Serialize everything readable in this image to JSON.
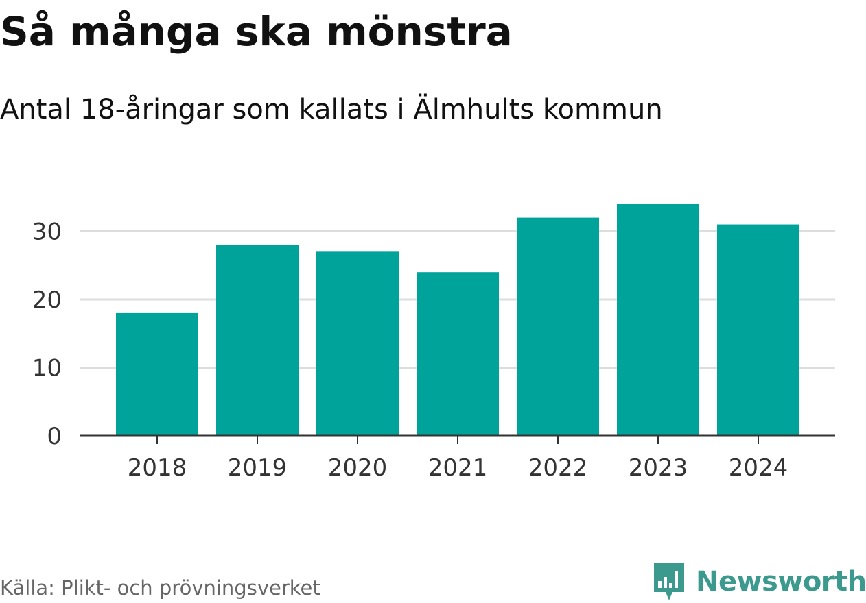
{
  "header": {
    "title": "Så många ska mönstra",
    "subtitle": "Antal 18-åringar som kallats i Älmhults kommun"
  },
  "footer": {
    "source": "Källa: Plikt- och prövningsverket",
    "brand": "Newsworthy",
    "brand_icon": "bar-chart-speech-bubble-icon"
  },
  "colors": {
    "bar": "#00a39a",
    "grid": "#dddddd",
    "axis": "#333333",
    "brand": "#3b9a8d"
  },
  "chart_data": {
    "type": "bar",
    "title": "Så många ska mönstra",
    "subtitle": "Antal 18-åringar som kallats i Älmhults kommun",
    "categories": [
      "2018",
      "2019",
      "2020",
      "2021",
      "2022",
      "2023",
      "2024"
    ],
    "values": [
      18,
      28,
      27,
      24,
      32,
      34,
      31
    ],
    "yticks": [
      0,
      10,
      20,
      30
    ],
    "ylim": [
      0,
      36
    ],
    "xlabel": "",
    "ylabel": "",
    "grid": true,
    "legend": "none"
  }
}
